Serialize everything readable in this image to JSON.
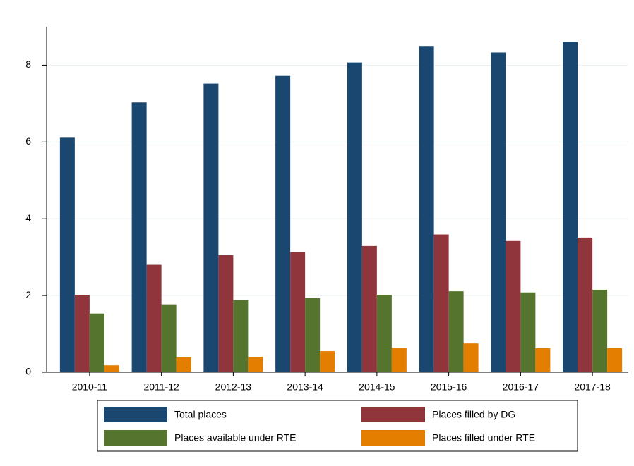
{
  "chart_data": {
    "type": "bar",
    "categories": [
      "2010-11",
      "2011-12",
      "2012-13",
      "2013-14",
      "2014-15",
      "2015-16",
      "2016-17",
      "2017-18"
    ],
    "series": [
      {
        "name": "Total places",
        "color": "#1a476f",
        "values": [
          6.11,
          7.03,
          7.52,
          7.72,
          8.07,
          8.5,
          8.33,
          8.61
        ]
      },
      {
        "name": "Places filled by DG",
        "color": "#90353b",
        "values": [
          2.02,
          2.8,
          3.05,
          3.13,
          3.29,
          3.59,
          3.42,
          3.51
        ]
      },
      {
        "name": "Places available under RTE",
        "color": "#55752f",
        "values": [
          1.53,
          1.77,
          1.88,
          1.93,
          2.02,
          2.11,
          2.08,
          2.15
        ]
      },
      {
        "name": "Places filled under RTE",
        "color": "#e37e00",
        "values": [
          0.18,
          0.39,
          0.4,
          0.55,
          0.64,
          0.75,
          0.63,
          0.63
        ]
      }
    ],
    "ylim": [
      0,
      9
    ],
    "yticks": [
      0,
      2,
      4,
      6,
      8
    ],
    "grid": true
  }
}
